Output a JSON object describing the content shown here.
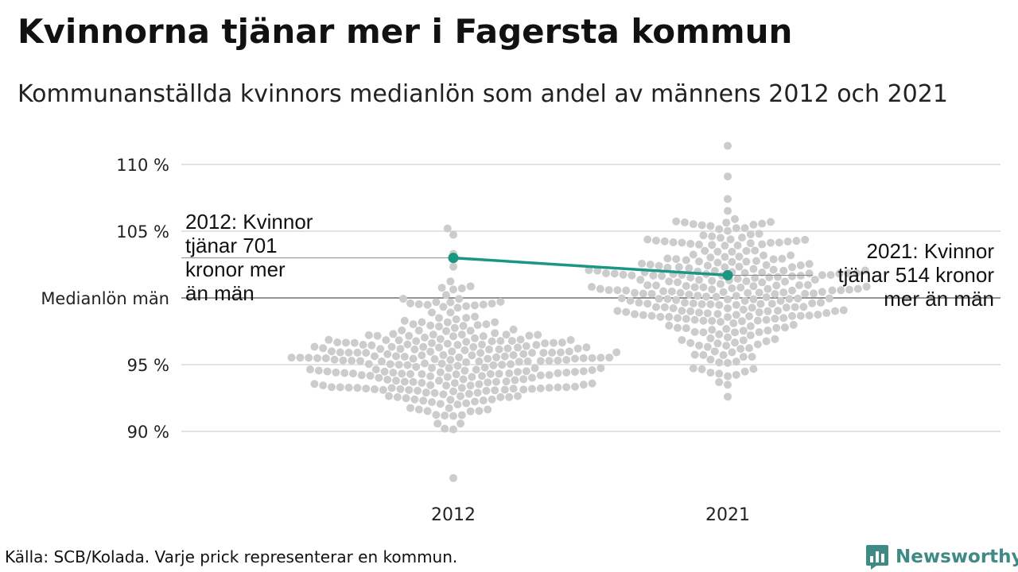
{
  "title": "Kvinnorna tjänar mer i Fagersta kommun",
  "subtitle": "Kommunanställda kvinnors medianlön som andel av männens 2012 och 2021",
  "footer": {
    "source": "Källa: SCB/Kolada. Varje prick representerar en kommun.",
    "brand": "Newsworthy"
  },
  "annotations": {
    "left": [
      "2012: Kvinnor",
      "tjänar 701",
      "kronor mer",
      "än män"
    ],
    "right": [
      "2021: Kvinnor",
      "tjänar 514 kronor",
      "mer än män"
    ]
  },
  "colors": {
    "highlight": "#1a9683",
    "dots": "#cccccc",
    "grid": "#e3e3e3",
    "reference": "#555555",
    "brand": "#3f8a84"
  },
  "chart_data": {
    "type": "scatter",
    "subtype": "beeswarm",
    "categories": [
      "2012",
      "2021"
    ],
    "y_unit": "%",
    "ylim": [
      86,
      111.5
    ],
    "y_ticks": [
      {
        "value": 90,
        "label": "90 %"
      },
      {
        "value": 95,
        "label": "95 %"
      },
      {
        "value": 100,
        "label": "Medianlön män"
      },
      {
        "value": 105,
        "label": "105 %"
      },
      {
        "value": 110,
        "label": "110 %"
      }
    ],
    "grid": true,
    "reference_line": {
      "value": 100,
      "label": "Medianlön män"
    },
    "highlight_series": {
      "name": "Fagersta",
      "values": [
        {
          "x": "2012",
          "y": 103.0
        },
        {
          "x": "2021",
          "y": 101.7
        }
      ]
    },
    "distribution": {
      "2012": {
        "center": 95.2,
        "sd": 2.45,
        "min": 86.5,
        "max": 105.2,
        "count": 290
      },
      "2021": {
        "center": 100.8,
        "sd": 2.7,
        "min": 92.6,
        "max": 111.4,
        "count": 290
      }
    }
  }
}
